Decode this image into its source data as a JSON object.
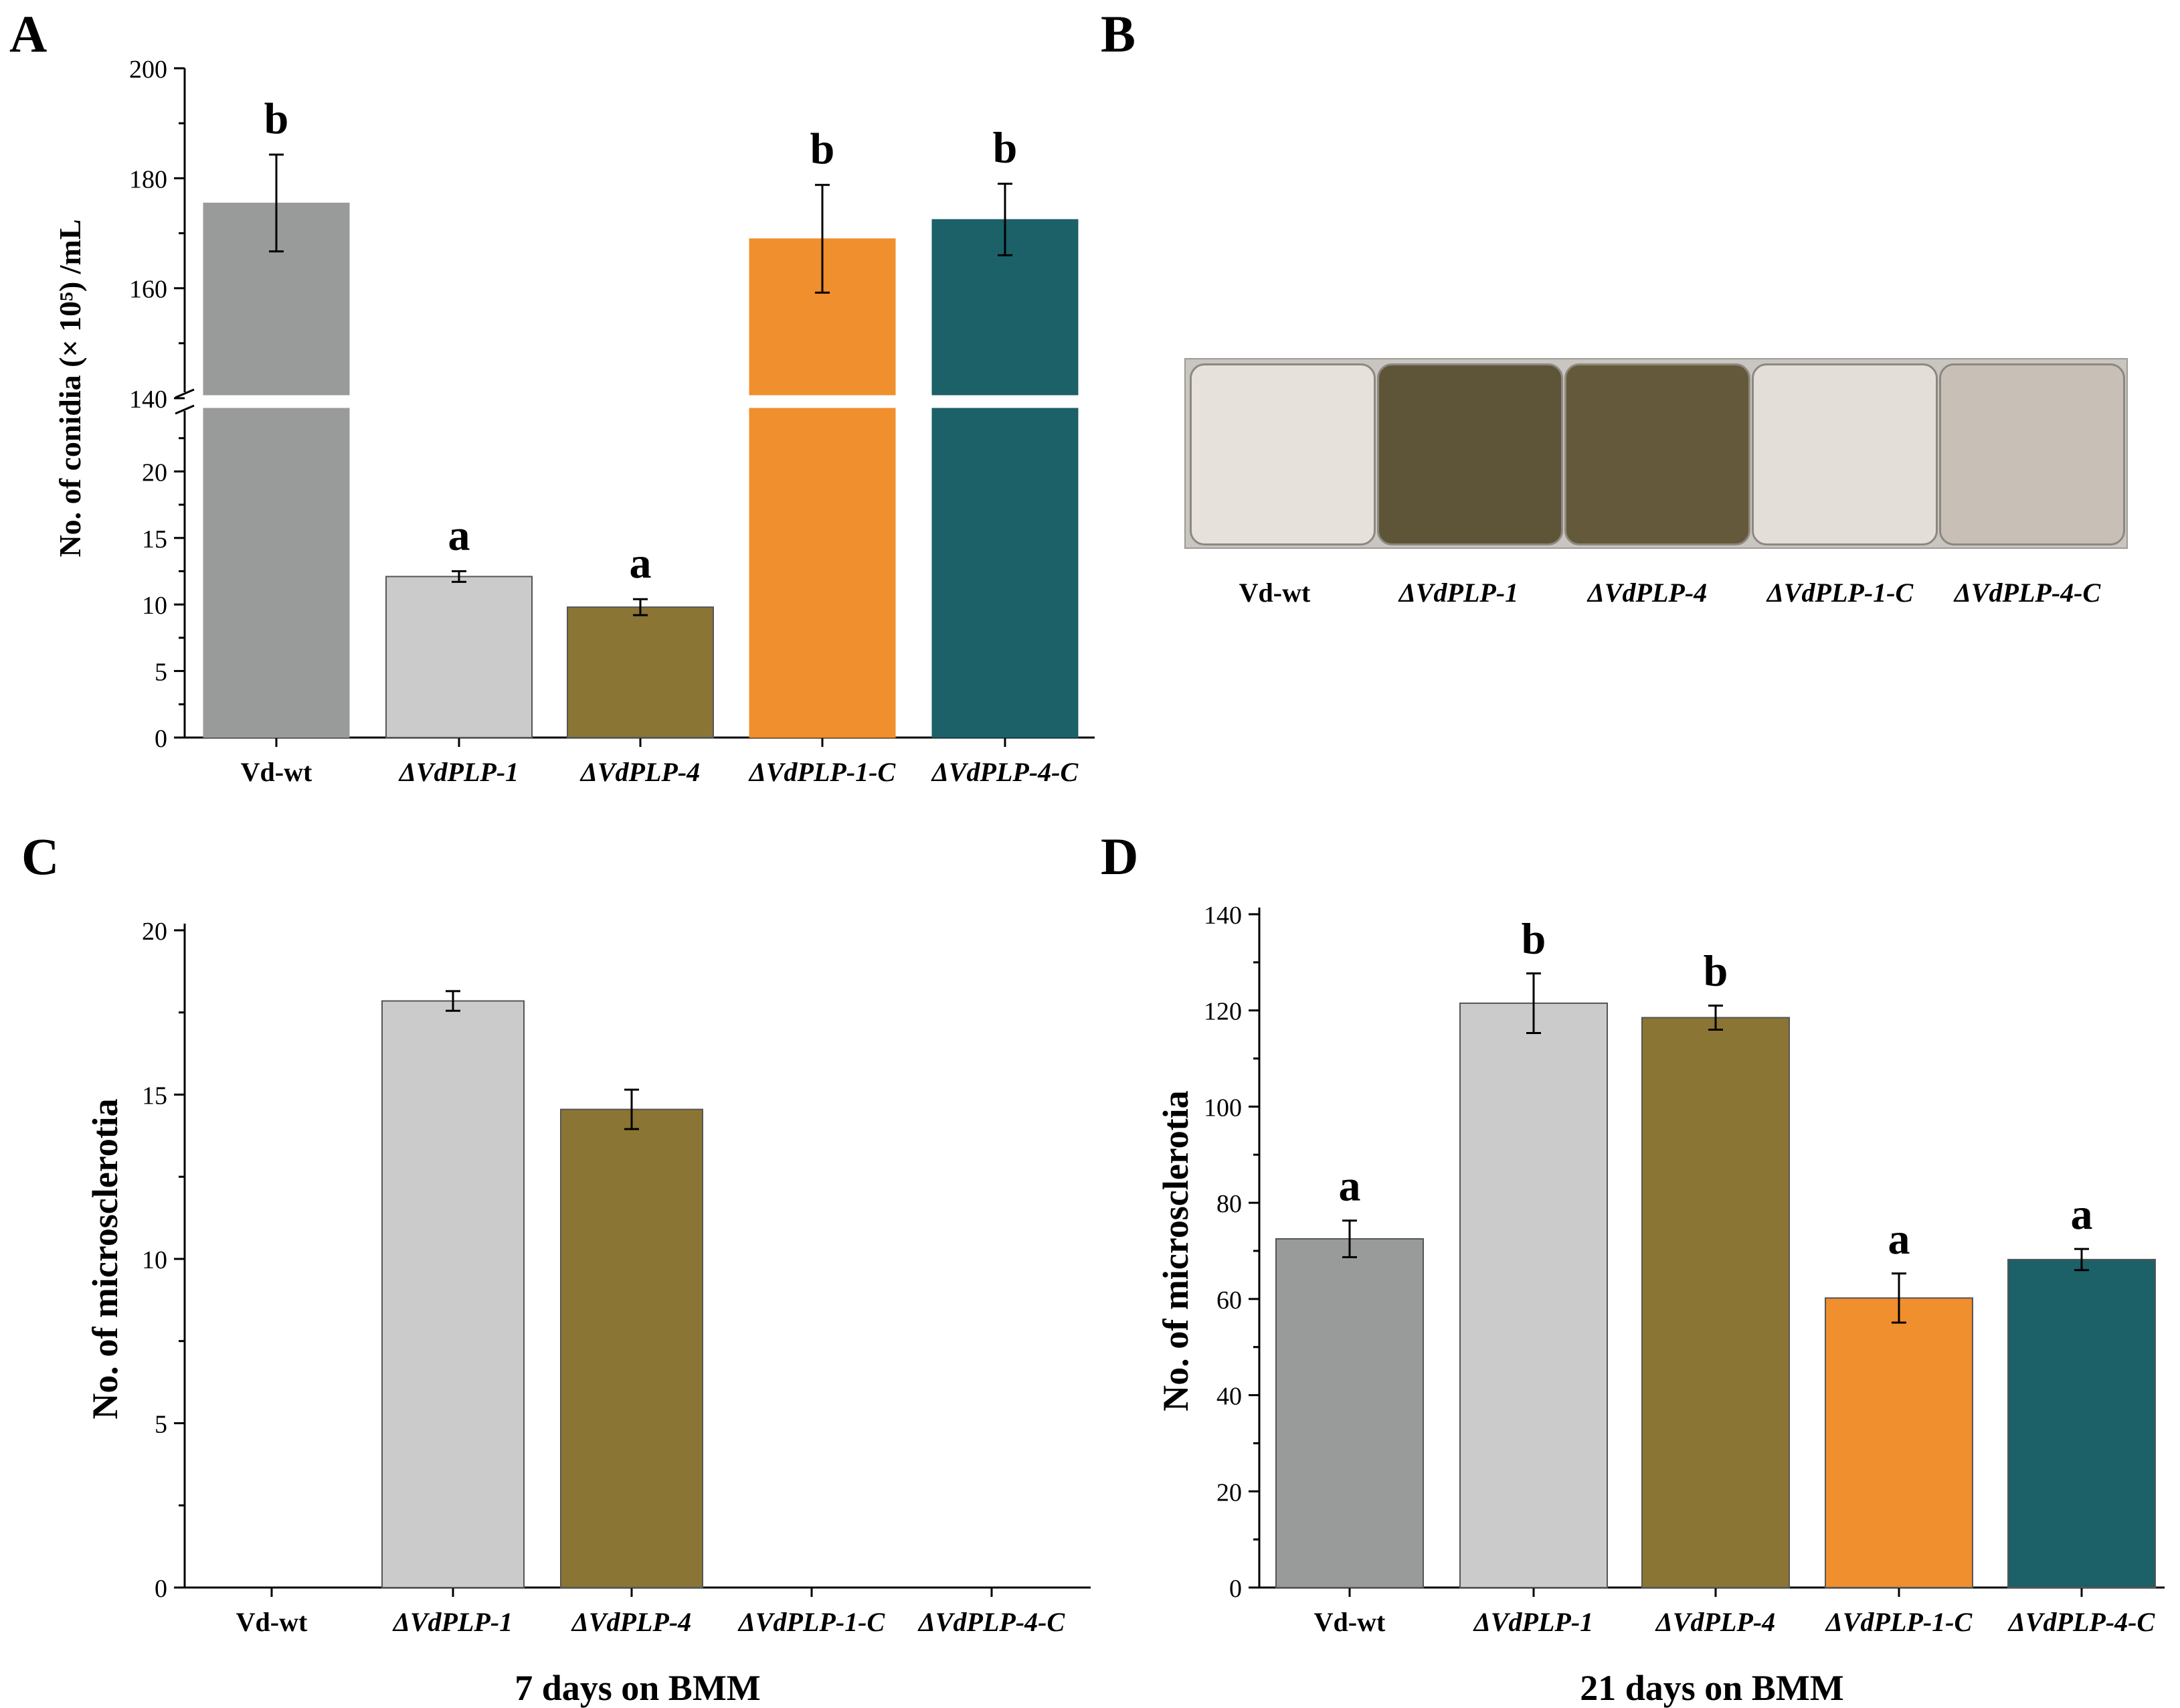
{
  "panel_labels": {
    "a": "A",
    "b": "B",
    "c": "C",
    "d": "D"
  },
  "colors": {
    "Vd-wt": "#999b9a",
    "ΔVdPLP-1": "#cbcbcb",
    "ΔVdPLP-4": "#8b7534",
    "ΔVdPLP-1-C": "#f08f2d",
    "ΔVdPLP-4-C": "#1c6068"
  },
  "plates": {
    "labels": [
      "Vd-wt",
      "ΔVdPLP-1",
      "ΔVdPLP-4",
      "ΔVdPLP-1-C",
      "ΔVdPLP-4-C"
    ],
    "plate_colors": [
      "#e6e2db",
      "#5e5438",
      "#64593a",
      "#e3ded8",
      "#c8bfb7"
    ]
  },
  "chart_data": [
    {
      "id": "A",
      "type": "bar",
      "title": "",
      "ylabel": "No. of conidia (× 10⁵) /mL",
      "xlabel": "",
      "categories": [
        "Vd-wt",
        "ΔVdPLP-1",
        "ΔVdPLP-4",
        "ΔVdPLP-1-C",
        "ΔVdPLP-4-C"
      ],
      "values": [
        175.5,
        12.1,
        9.8,
        169,
        172.5
      ],
      "errors": [
        8.8,
        0.4,
        0.6,
        9.8,
        6.5
      ],
      "significance": [
        "b",
        "a",
        "a",
        "b",
        "b"
      ],
      "axis_break": {
        "lower_range": [
          0,
          25
        ],
        "upper_range": [
          140,
          200
        ]
      },
      "lower_ticks": [
        0,
        5,
        10,
        15,
        20
      ],
      "upper_ticks": [
        140,
        160,
        180,
        200
      ]
    },
    {
      "id": "C",
      "type": "bar",
      "title": "",
      "ylabel": "No. of microsclerotia",
      "xlabel": "7 days on BMM",
      "categories": [
        "Vd-wt",
        "ΔVdPLP-1",
        "ΔVdPLP-4",
        "ΔVdPLP-1-C",
        "ΔVdPLP-4-C"
      ],
      "values": [
        0,
        17.85,
        14.55,
        0,
        0
      ],
      "errors": [
        0,
        0.3,
        0.6,
        0,
        0
      ],
      "significance": [
        "",
        "",
        "",
        "",
        ""
      ],
      "ylim": [
        0,
        20
      ],
      "ticks": [
        0,
        5,
        10,
        15,
        20
      ]
    },
    {
      "id": "D",
      "type": "bar",
      "title": "",
      "ylabel": "No. of microsclerotia",
      "xlabel": "21 days on BMM",
      "categories": [
        "Vd-wt",
        "ΔVdPLP-1",
        "ΔVdPLP-4",
        "ΔVdPLP-1-C",
        "ΔVdPLP-4-C"
      ],
      "values": [
        72.5,
        121.5,
        118.5,
        60.2,
        68.2
      ],
      "errors": [
        3.8,
        6.2,
        2.5,
        5.1,
        2.2
      ],
      "significance": [
        "a",
        "b",
        "b",
        "a",
        "a"
      ],
      "ylim": [
        0,
        140
      ],
      "ticks": [
        0,
        20,
        40,
        60,
        80,
        100,
        120,
        140
      ]
    }
  ]
}
